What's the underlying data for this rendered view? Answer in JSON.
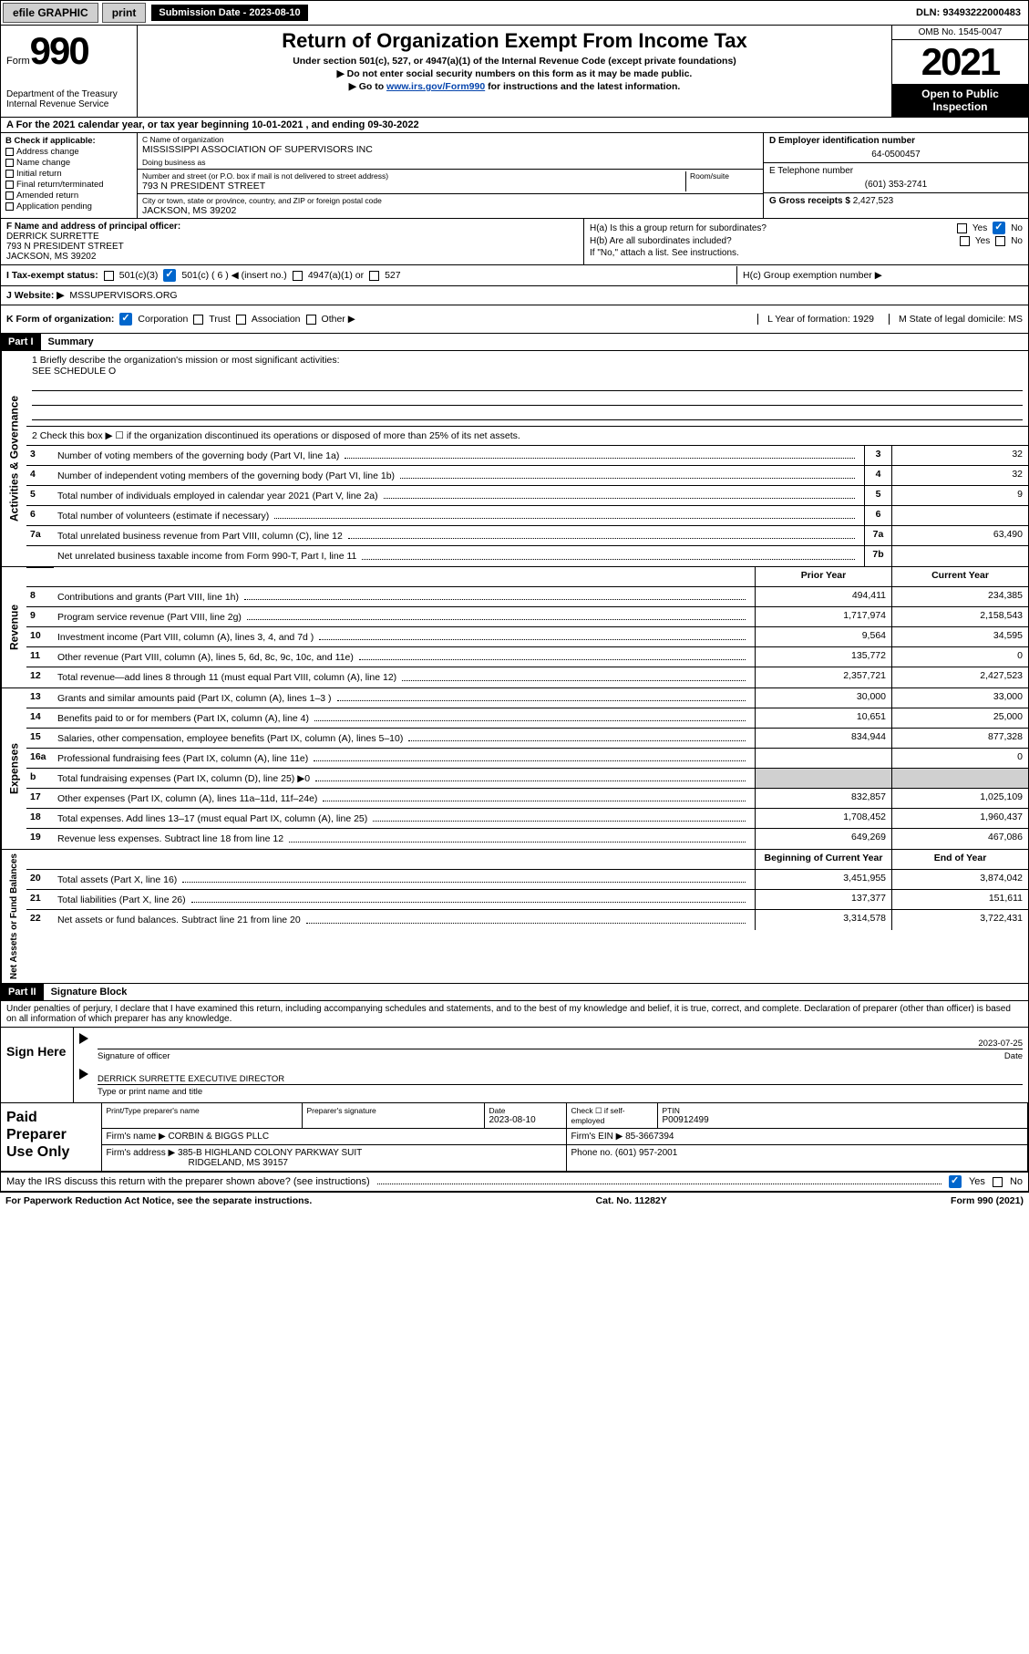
{
  "topbar": {
    "efile": "efile GRAPHIC",
    "print": "print",
    "submission": "Submission Date - 2023-08-10",
    "dln": "DLN: 93493222000483"
  },
  "header": {
    "form_word": "Form",
    "form_num": "990",
    "title": "Return of Organization Exempt From Income Tax",
    "sub1": "Under section 501(c), 527, or 4947(a)(1) of the Internal Revenue Code (except private foundations)",
    "sub2": "▶ Do not enter social security numbers on this form as it may be made public.",
    "sub3a": "▶ Go to ",
    "sub3_link": "www.irs.gov/Form990",
    "sub3b": " for instructions and the latest information.",
    "dept": "Department of the Treasury",
    "irs": "Internal Revenue Service",
    "omb": "OMB No. 1545-0047",
    "year": "2021",
    "open": "Open to Public Inspection"
  },
  "periodA": "A For the 2021 calendar year, or tax year beginning 10-01-2021   , and ending 09-30-2022",
  "blockB": {
    "label": "B Check if applicable:",
    "items": [
      "Address change",
      "Name change",
      "Initial return",
      "Final return/terminated",
      "Amended return",
      "Application pending"
    ]
  },
  "blockC": {
    "name_lbl": "C Name of organization",
    "name": "MISSISSIPPI ASSOCIATION OF SUPERVISORS INC",
    "dba_lbl": "Doing business as",
    "dba": "",
    "addr_lbl": "Number and street (or P.O. box if mail is not delivered to street address)",
    "room_lbl": "Room/suite",
    "addr": "793 N PRESIDENT STREET",
    "city_lbl": "City or town, state or province, country, and ZIP or foreign postal code",
    "city": "JACKSON, MS  39202"
  },
  "blockD": {
    "lbl": "D Employer identification number",
    "val": "64-0500457"
  },
  "blockE": {
    "lbl": "E Telephone number",
    "val": "(601) 353-2741"
  },
  "blockG": {
    "lbl": "G Gross receipts $",
    "val": "2,427,523"
  },
  "blockF": {
    "lbl": "F Name and address of principal officer:",
    "name": "DERRICK SURRETTE",
    "addr1": "793 N PRESIDENT STREET",
    "addr2": "JACKSON, MS  39202"
  },
  "blockH": {
    "a_lbl": "H(a)  Is this a group return for subordinates?",
    "b_lbl": "H(b)  Are all subordinates included?",
    "b_note": "If \"No,\" attach a list. See instructions.",
    "c_lbl": "H(c)  Group exemption number ▶"
  },
  "taxI": {
    "lbl": "I   Tax-exempt status:",
    "o1": "501(c)(3)",
    "o2": "501(c) ( 6 ) ◀ (insert no.)",
    "o3": "4947(a)(1) or",
    "o4": "527"
  },
  "taxJ": {
    "lbl": "J   Website: ▶",
    "val": "MSSUPERVISORS.ORG"
  },
  "rowK": {
    "lbl": "K Form of organization:",
    "opts": [
      "Corporation",
      "Trust",
      "Association",
      "Other ▶"
    ],
    "L": "L Year of formation: 1929",
    "M": "M State of legal domicile: MS"
  },
  "part1": {
    "hdr": "Part I",
    "title": "Summary"
  },
  "mission": {
    "q1": "1   Briefly describe the organization's mission or most significant activities:",
    "val": "SEE SCHEDULE O",
    "q2": "2   Check this box ▶ ☐  if the organization discontinued its operations or disposed of more than 25% of its net assets."
  },
  "gov_rows": [
    {
      "n": "3",
      "d": "Number of voting members of the governing body (Part VI, line 1a)",
      "box": "3",
      "v": "32"
    },
    {
      "n": "4",
      "d": "Number of independent voting members of the governing body (Part VI, line 1b)",
      "box": "4",
      "v": "32"
    },
    {
      "n": "5",
      "d": "Total number of individuals employed in calendar year 2021 (Part V, line 2a)",
      "box": "5",
      "v": "9"
    },
    {
      "n": "6",
      "d": "Total number of volunteers (estimate if necessary)",
      "box": "6",
      "v": ""
    },
    {
      "n": "7a",
      "d": "Total unrelated business revenue from Part VIII, column (C), line 12",
      "box": "7a",
      "v": "63,490"
    },
    {
      "n": "",
      "d": "Net unrelated business taxable income from Form 990-T, Part I, line 11",
      "box": "7b",
      "v": ""
    }
  ],
  "rev_head": {
    "prior": "Prior Year",
    "curr": "Current Year"
  },
  "rev_rows": [
    {
      "n": "8",
      "d": "Contributions and grants (Part VIII, line 1h)",
      "p": "494,411",
      "c": "234,385"
    },
    {
      "n": "9",
      "d": "Program service revenue (Part VIII, line 2g)",
      "p": "1,717,974",
      "c": "2,158,543"
    },
    {
      "n": "10",
      "d": "Investment income (Part VIII, column (A), lines 3, 4, and 7d )",
      "p": "9,564",
      "c": "34,595"
    },
    {
      "n": "11",
      "d": "Other revenue (Part VIII, column (A), lines 5, 6d, 8c, 9c, 10c, and 11e)",
      "p": "135,772",
      "c": "0"
    },
    {
      "n": "12",
      "d": "Total revenue—add lines 8 through 11 (must equal Part VIII, column (A), line 12)",
      "p": "2,357,721",
      "c": "2,427,523"
    }
  ],
  "exp_rows": [
    {
      "n": "13",
      "d": "Grants and similar amounts paid (Part IX, column (A), lines 1–3 )",
      "p": "30,000",
      "c": "33,000"
    },
    {
      "n": "14",
      "d": "Benefits paid to or for members (Part IX, column (A), line 4)",
      "p": "10,651",
      "c": "25,000"
    },
    {
      "n": "15",
      "d": "Salaries, other compensation, employee benefits (Part IX, column (A), lines 5–10)",
      "p": "834,944",
      "c": "877,328"
    },
    {
      "n": "16a",
      "d": "Professional fundraising fees (Part IX, column (A), line 11e)",
      "p": "",
      "c": "0"
    },
    {
      "n": "b",
      "d": "Total fundraising expenses (Part IX, column (D), line 25) ▶0",
      "p": "shade",
      "c": "shade"
    },
    {
      "n": "17",
      "d": "Other expenses (Part IX, column (A), lines 11a–11d, 11f–24e)",
      "p": "832,857",
      "c": "1,025,109"
    },
    {
      "n": "18",
      "d": "Total expenses. Add lines 13–17 (must equal Part IX, column (A), line 25)",
      "p": "1,708,452",
      "c": "1,960,437"
    },
    {
      "n": "19",
      "d": "Revenue less expenses. Subtract line 18 from line 12",
      "p": "649,269",
      "c": "467,086"
    }
  ],
  "na_head": {
    "prior": "Beginning of Current Year",
    "curr": "End of Year"
  },
  "na_rows": [
    {
      "n": "20",
      "d": "Total assets (Part X, line 16)",
      "p": "3,451,955",
      "c": "3,874,042"
    },
    {
      "n": "21",
      "d": "Total liabilities (Part X, line 26)",
      "p": "137,377",
      "c": "151,611"
    },
    {
      "n": "22",
      "d": "Net assets or fund balances. Subtract line 21 from line 20",
      "p": "3,314,578",
      "c": "3,722,431"
    }
  ],
  "vtabs": {
    "gov": "Activities & Governance",
    "rev": "Revenue",
    "exp": "Expenses",
    "na": "Net Assets or Fund Balances"
  },
  "part2": {
    "hdr": "Part II",
    "title": "Signature Block"
  },
  "sig": {
    "note": "Under penalties of perjury, I declare that I have examined this return, including accompanying schedules and statements, and to the best of my knowledge and belief, it is true, correct, and complete. Declaration of preparer (other than officer) is based on all information of which preparer has any knowledge.",
    "sign_here": "Sign Here",
    "sig_of_officer": "Signature of officer",
    "date_lbl": "Date",
    "date": "2023-07-25",
    "name": "DERRICK SURRETTE  EXECUTIVE DIRECTOR",
    "name_lbl": "Type or print name and title"
  },
  "prep": {
    "lbl": "Paid Preparer Use Only",
    "h1": "Print/Type preparer's name",
    "h2": "Preparer's signature",
    "h3": "Date",
    "h3v": "2023-08-10",
    "h4": "Check ☐ if self-employed",
    "h5": "PTIN",
    "h5v": "P00912499",
    "firm_lbl": "Firm's name    ▶",
    "firm": "CORBIN & BIGGS PLLC",
    "ein_lbl": "Firm's EIN ▶",
    "ein": "85-3667394",
    "addr_lbl": "Firm's address ▶",
    "addr1": "385-B HIGHLAND COLONY PARKWAY SUIT",
    "addr2": "RIDGELAND, MS  39157",
    "phone_lbl": "Phone no.",
    "phone": "(601) 957-2001"
  },
  "discuss": "May the IRS discuss this return with the preparer shown above? (see instructions)",
  "footer": {
    "left": "For Paperwork Reduction Act Notice, see the separate instructions.",
    "mid": "Cat. No. 11282Y",
    "right": "Form 990 (2021)"
  },
  "yes": "Yes",
  "no": "No"
}
